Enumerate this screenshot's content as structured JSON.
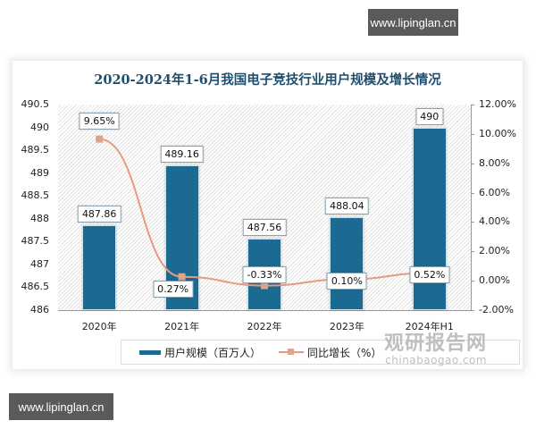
{
  "watermarks": {
    "top": "www.lipinglan.cn",
    "bottom": "www.lipinglan.cn",
    "brand_cn": "观研报告网",
    "brand_en": "chinabaogao.com"
  },
  "chart_data": {
    "type": "bar",
    "title": "2020-2024年1-6月我国电子竞技行业用户规模及增长情况",
    "categories": [
      "2020年",
      "2021年",
      "2022年",
      "2023年",
      "2024年H1"
    ],
    "series": [
      {
        "name": "用户规模（百万人）",
        "type": "bar",
        "axis": "left",
        "color": "#1b6a91",
        "values": [
          487.86,
          489.16,
          487.56,
          488.04,
          490
        ],
        "labels": [
          "487.86",
          "489.16",
          "487.56",
          "488.04",
          "490"
        ]
      },
      {
        "name": "同比增长（%）",
        "type": "line",
        "axis": "right",
        "color": "#e89a80",
        "values": [
          9.65,
          0.27,
          -0.33,
          0.1,
          0.52
        ],
        "labels": [
          "9.65%",
          "0.27%",
          "-0.33%",
          "0.10%",
          "0.52%"
        ]
      }
    ],
    "left_axis": {
      "ylim": [
        486,
        490.5
      ],
      "ticks": [
        "490.5",
        "490",
        "489.5",
        "489",
        "488.5",
        "488",
        "487.5",
        "487",
        "486.5",
        "486"
      ]
    },
    "right_axis": {
      "ylim": [
        -2,
        12
      ],
      "ticks": [
        "12.00%",
        "10.00%",
        "8.00%",
        "6.00%",
        "4.00%",
        "2.00%",
        "0.00%",
        "-2.00%"
      ]
    },
    "grid": false,
    "legend_position": "bottom",
    "legend": [
      "用户规模（百万人）",
      "同比增长（%）"
    ]
  }
}
